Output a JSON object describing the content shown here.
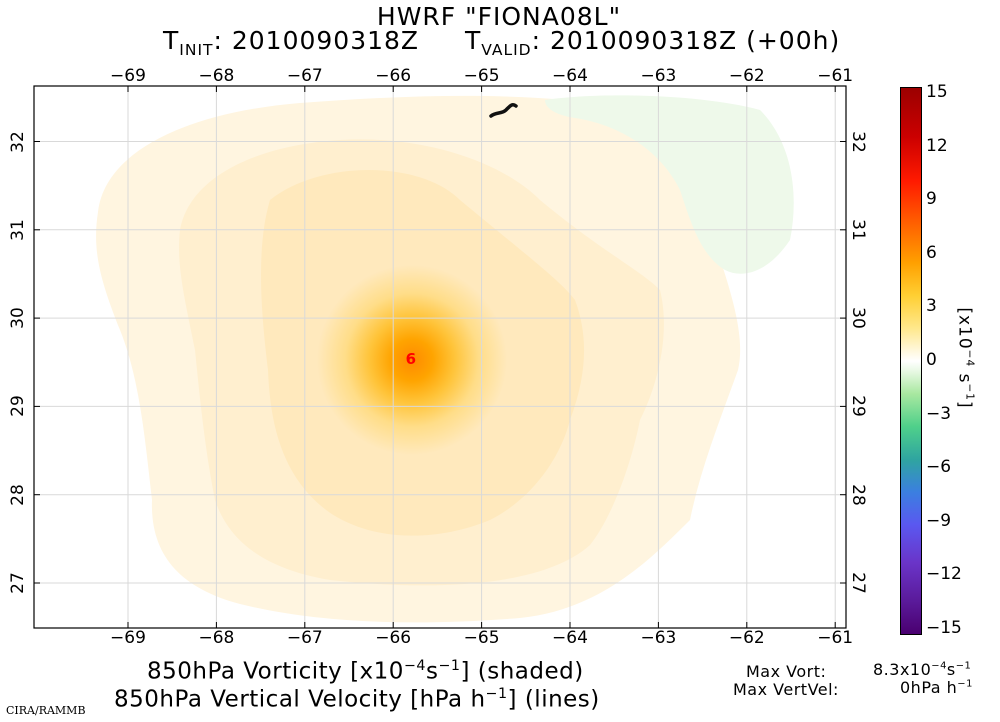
{
  "header": {
    "model_name": "HWRF \"FIONA08L\"",
    "init_prefix": "T",
    "init_sub": "INIT",
    "init_value": ": 2010090318Z",
    "valid_prefix": "T",
    "valid_sub": "VALID",
    "valid_value": ": 2010090318Z (+00h)"
  },
  "map": {
    "lon_ticks": [
      "−69",
      "−68",
      "−67",
      "−66",
      "−65",
      "−64",
      "−63",
      "−62",
      "−61"
    ],
    "lat_ticks": [
      "27",
      "28",
      "29",
      "30",
      "31",
      "32"
    ],
    "lon_range": [
      -69.7,
      -60.9
    ],
    "lat_range": [
      26.5,
      32.6
    ],
    "grid": true,
    "storm_symbol": "hurricane-symbol",
    "storm_center": {
      "lon": -65.8,
      "lat": 29.55
    },
    "storm_color": "#ff0000"
  },
  "colorbar": {
    "ticks": [
      "15",
      "12",
      "9",
      "6",
      "3",
      "0",
      "−3",
      "−6",
      "−9",
      "−12",
      "−15"
    ],
    "range": [
      -15,
      15
    ],
    "unit_label": "[x10−4 s−1]",
    "unit_base": "[x10",
    "unit_exp1": "−4",
    "unit_mid": " s",
    "unit_exp2": "−1",
    "unit_end": "]"
  },
  "footer": {
    "line1_a": "850hPa Vorticity [x10",
    "line1_exp1": "−4",
    "line1_b": "s",
    "line1_exp2": "−1",
    "line1_c": "] (shaded)",
    "line2_a": "850hPa Vertical Velocity [hPa h",
    "line2_exp": "−1",
    "line2_b": "] (lines)",
    "max_vort_label": "Max Vort:",
    "max_vort_value": "8.3x10",
    "max_vort_exp1": "−4",
    "max_vort_unit": "s",
    "max_vort_exp2": "−1",
    "max_vertvel_label": "Max VertVel:",
    "max_vertvel_value": "0hPa h",
    "max_vertvel_exp": "−1",
    "credit": "CIRA/RAMMB"
  },
  "colors": {
    "frame": "#000000",
    "grid": "#dcdcdc",
    "field_light": "#fff3dc",
    "field_mid": "#ffe6a8",
    "field_core": "#ffb000",
    "field_peak": "#ff8a00",
    "field_negative": "#e9f8e6"
  }
}
